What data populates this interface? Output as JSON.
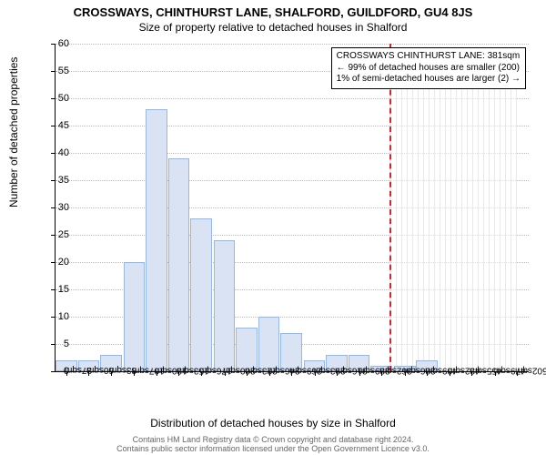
{
  "header": {
    "title": "CROSSWAYS, CHINTHURST LANE, SHALFORD, GUILDFORD, GU4 8JS",
    "subtitle": "Size of property relative to detached houses in Shalford"
  },
  "chart": {
    "type": "histogram",
    "ylabel": "Number of detached properties",
    "xlabel": "Distribution of detached houses by size in Shalford",
    "ylim": [
      0,
      60
    ],
    "ytick_step": 5,
    "xticks": [
      "37sqm",
      "60sqm",
      "83sqm",
      "107sqm",
      "130sqm",
      "153sqm",
      "176sqm",
      "200sqm",
      "223sqm",
      "246sqm",
      "269sqm",
      "293sqm",
      "316sqm",
      "339sqm",
      "362sqm",
      "386sqm",
      "409sqm",
      "432sqm",
      "455sqm",
      "479sqm",
      "502sqm"
    ],
    "values": [
      2,
      2,
      3,
      20,
      48,
      39,
      28,
      24,
      8,
      10,
      7,
      2,
      3,
      3,
      1,
      1,
      2,
      0,
      0,
      0,
      0
    ],
    "bar_fill": "#d9e3f4",
    "bar_stroke": "#9ab7de",
    "grid_color": "#bbbbbb",
    "background": "#ffffff",
    "label_fontsize": 12,
    "tick_fontsize": 11
  },
  "marker": {
    "value_sqm": 381,
    "color": "#d62728"
  },
  "hatched_region": {
    "from_sqm": 381,
    "to_sqm": 513,
    "max_count": 55
  },
  "annotation": {
    "line1": "CROSSWAYS CHINTHURST LANE: 381sqm",
    "line2": "← 99% of detached houses are smaller (200)",
    "line3": "1% of semi-detached houses are larger (2) →"
  },
  "footer": {
    "line1": "Contains HM Land Registry data © Crown copyright and database right 2024.",
    "line2": "Contains public sector information licensed under the Open Government Licence v3.0."
  }
}
